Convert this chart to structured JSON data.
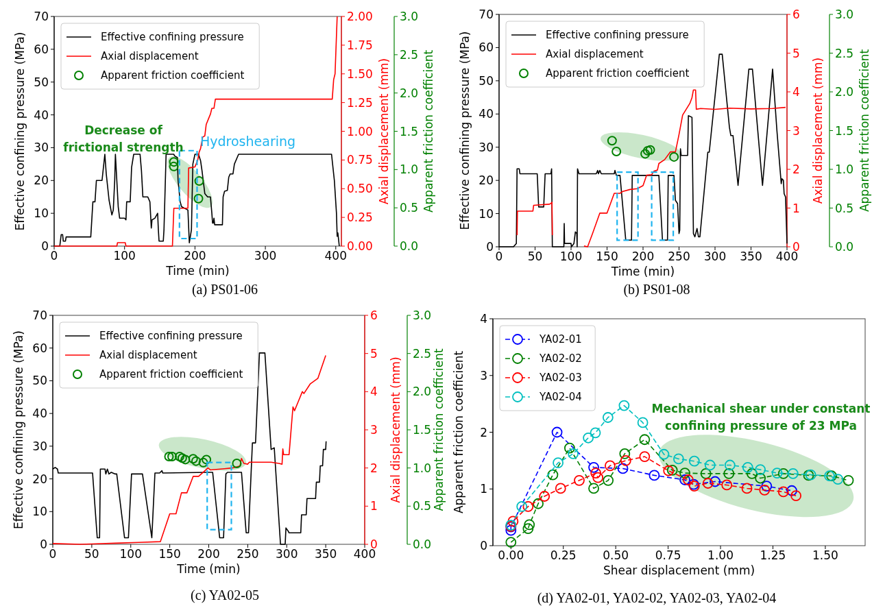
{
  "chart_data": [
    {
      "type": "line",
      "title": "(a) PS01-06",
      "xlabel": "Time (min)",
      "ylabel": "Effective confining pressure (MPa)",
      "y2label": "Axial displacement (mm)",
      "y3label": "Apparent friction coefficient",
      "xlim": [
        0,
        408
      ],
      "xticks": [
        0,
        100,
        200,
        300,
        400
      ],
      "ylim": [
        0,
        70
      ],
      "yticks": [
        0,
        10,
        20,
        30,
        40,
        50,
        60,
        70
      ],
      "y2lim": [
        0,
        2
      ],
      "y2ticks": [
        {
          "value": 0,
          "label": "0.00"
        },
        0.25,
        {
          "value": 0.5,
          "label": "0.50"
        },
        0.75,
        {
          "value": 1,
          "label": "1.00"
        },
        1.25,
        {
          "value": 1.5,
          "label": "1.50"
        },
        1.75,
        {
          "value": 2,
          "label": "2.00"
        }
      ],
      "y3lim": [
        0,
        3
      ],
      "y3ticks": [
        {
          "value": 0,
          "label": "0.0"
        },
        0.5,
        {
          "value": 1,
          "label": "1.0"
        },
        1.5,
        {
          "value": 2,
          "label": "2.0"
        },
        2.5,
        {
          "value": 3,
          "label": "3.0"
        }
      ],
      "legend": "top left",
      "annotations": [
        "Decrease of frictional strength",
        "Hydroshearing"
      ],
      "series": [
        {
          "name": "Effective confining pressure",
          "color": "#000000",
          "x": [
            0,
            8,
            10,
            12,
            13,
            16,
            17,
            52,
            55,
            58,
            60,
            66,
            68,
            70,
            72,
            74,
            78,
            82,
            84,
            86,
            87,
            89,
            91,
            93,
            100,
            102,
            103,
            108,
            110,
            113,
            122,
            124,
            126,
            133,
            136,
            138,
            139,
            143,
            147,
            148,
            149,
            155,
            156,
            159,
            170,
            171,
            175,
            176,
            179,
            181,
            190,
            192,
            195,
            197,
            200,
            205,
            208,
            210,
            214,
            218,
            222,
            224,
            225,
            226,
            227,
            228,
            239,
            240,
            242,
            246,
            248,
            250,
            254,
            256,
            260,
            262,
            394,
            398,
            401,
            402,
            403,
            404,
            405
          ],
          "values": [
            0,
            0,
            3.5,
            3.5,
            1.5,
            1.5,
            2.8,
            2.8,
            13.5,
            13.5,
            20,
            20,
            20,
            24,
            28,
            22,
            14,
            9.5,
            11,
            20,
            28,
            20,
            12,
            8.5,
            8.5,
            8,
            13.5,
            13.5,
            24,
            28,
            28,
            23,
            15,
            15,
            13.5,
            5.5,
            8,
            8.5,
            10,
            5,
            1.5,
            1.5,
            5,
            28,
            28,
            27.5,
            27,
            20,
            13.5,
            12,
            11,
            1,
            5,
            25,
            28,
            28,
            26,
            23,
            16,
            15,
            15,
            10,
            7,
            7,
            8.5,
            6.5,
            6.5,
            15,
            16.7,
            17,
            21,
            22,
            22,
            25,
            27,
            28,
            28,
            20,
            10,
            3,
            4,
            2,
            0
          ]
        },
        {
          "name": "Axial displacement",
          "color": "#ff0000",
          "axis": "y2",
          "x": [
            0,
            89,
            90,
            101,
            102,
            168,
            170,
            172,
            190,
            191,
            200,
            204,
            206,
            208,
            211,
            214,
            216,
            220,
            222,
            224,
            227,
            229,
            395,
            397,
            399,
            402
          ],
          "values": [
            0,
            0,
            0.03,
            0.03,
            0,
            0,
            0.33,
            0.33,
            0.33,
            0.68,
            0.69,
            0.75,
            0.82,
            0.85,
            0.95,
            0.96,
            1.06,
            1.12,
            1.15,
            1.2,
            1.2,
            1.28,
            1.28,
            1.45,
            1.5,
            2
          ]
        },
        {
          "name": "Apparent friction coefficient",
          "color": "#008000",
          "type": "scatter",
          "axis": "y3",
          "marker": "circle",
          "x": [
            170,
            170,
            206,
            205
          ],
          "values": [
            1.1,
            1.04,
            0.85,
            0.62
          ]
        }
      ]
    },
    {
      "type": "line",
      "title": "(b) PS01-08",
      "xlabel": "Time (min)",
      "ylabel": "Effective confining pressure (MPa)",
      "y2label": "Axial displacement (mm)",
      "y3label": "Apparent friction coefficient",
      "xlim": [
        0,
        400
      ],
      "xticks": [
        0,
        50,
        100,
        150,
        200,
        250,
        300,
        350,
        400
      ],
      "ylim": [
        0,
        70
      ],
      "yticks": [
        0,
        10,
        20,
        30,
        40,
        50,
        60,
        70
      ],
      "y2lim": [
        0,
        6
      ],
      "y2ticks": [
        0,
        1,
        2,
        3,
        4,
        5,
        6
      ],
      "y3lim": [
        0,
        3
      ],
      "y3ticks": [
        {
          "value": 0,
          "label": "0.0"
        },
        0.5,
        {
          "value": 1,
          "label": "1.0"
        },
        1.5,
        {
          "value": 2,
          "label": "2.0"
        },
        2.5,
        {
          "value": 3,
          "label": "3.0"
        }
      ],
      "legend": "top left",
      "series": [
        {
          "name": "Effective confining pressure",
          "color": "#000000",
          "x": [
            0,
            20,
            24,
            25,
            28,
            29,
            53,
            55,
            62,
            64,
            72,
            73,
            74,
            90,
            90.5,
            91,
            100,
            100.5,
            104,
            106,
            108,
            108.5,
            109,
            111,
            135,
            137,
            138,
            140,
            142,
            160,
            161,
            163,
            168,
            176,
            184,
            185,
            200,
            215,
            222,
            227,
            234,
            235,
            243,
            245,
            248,
            250,
            251,
            252,
            253,
            262,
            263,
            268,
            270,
            272,
            275,
            277,
            279,
            290,
            292,
            306,
            310,
            320,
            322,
            325,
            332,
            347,
            352,
            366,
            380,
            386,
            392,
            393,
            395,
            396,
            398,
            400
          ],
          "values": [
            0,
            0,
            1,
            23.5,
            23.5,
            22,
            22,
            12,
            12,
            22,
            22,
            23.5,
            0,
            0,
            7,
            1,
            1,
            0,
            1,
            4.5,
            4,
            0,
            23.5,
            22,
            22,
            23,
            22,
            23,
            22,
            22,
            23,
            21.5,
            21.5,
            2,
            2,
            21.5,
            21.5,
            21.5,
            21.5,
            2,
            2,
            21.5,
            21.5,
            14,
            13,
            4,
            5,
            29.5,
            27.5,
            27.5,
            39.5,
            39,
            4,
            3,
            5.5,
            3,
            3,
            28.5,
            28.5,
            58,
            58,
            36,
            33.5,
            33.5,
            18.5,
            53.5,
            53.5,
            18.5,
            53.5,
            35,
            19,
            20.5,
            20,
            16,
            15,
            1
          ]
        },
        {
          "name": "Axial displacement",
          "color": "#ff0000",
          "axis": "y2",
          "x": [
            25,
            25.5,
            47,
            48,
            70,
            72,
            73.5,
            74,
            80,
            118,
            123,
            130,
            140,
            150,
            160,
            168,
            172,
            182,
            192,
            200,
            205,
            212,
            215,
            220,
            222,
            230,
            238,
            245,
            250,
            255,
            260,
            265,
            268,
            270,
            273,
            274,
            280,
            300,
            320,
            350,
            380,
            398
          ],
          "values": [
            0.3,
            0.92,
            0.92,
            1.07,
            1.1,
            1.12,
            1.15,
            0.3,
            null,
            0.02,
            0,
            0.35,
            0.87,
            0.87,
            1.38,
            1.38,
            1.43,
            1.48,
            1.5,
            1.58,
            1.85,
            1.86,
            1.95,
            1.98,
            2.15,
            2.25,
            2.45,
            2.45,
            2.9,
            3.4,
            3.55,
            3.7,
            3.85,
            4.05,
            4.05,
            3.55,
            3.57,
            3.55,
            3.58,
            3.56,
            3.57,
            3.6
          ]
        },
        {
          "name": "Apparent friction coefficient",
          "color": "#008000",
          "type": "scatter",
          "axis": "y3",
          "marker": "circle",
          "x": [
            157,
            163,
            203,
            206.5,
            210,
            243
          ],
          "values": [
            1.37,
            1.23,
            1.2,
            1.24,
            1.25,
            1.16
          ]
        }
      ]
    },
    {
      "type": "line",
      "title": "(c) YA02-05",
      "xlabel": "Time (min)",
      "ylabel": "Effective confining pressure (MPa)",
      "y2label": "Axial displacement (mm)",
      "y3label": "Apparent friction coefficient",
      "xlim": [
        0,
        400
      ],
      "xticks": [
        0,
        50,
        100,
        150,
        200,
        250,
        300,
        350,
        400
      ],
      "ylim": [
        0,
        70
      ],
      "yticks": [
        0,
        10,
        20,
        30,
        40,
        50,
        60,
        70
      ],
      "y2lim": [
        0,
        6
      ],
      "y2ticks": [
        0,
        1,
        2,
        3,
        4,
        5,
        6
      ],
      "y3lim": [
        0,
        3
      ],
      "y3ticks": [
        {
          "value": 0,
          "label": "0.0"
        },
        0.5,
        {
          "value": 1,
          "label": "1.0"
        },
        1.5,
        {
          "value": 2,
          "label": "2.0"
        },
        2.5,
        {
          "value": 3,
          "label": "3.0"
        }
      ],
      "legend": "top left",
      "series": [
        {
          "name": "Effective confining pressure",
          "color": "#000000",
          "x": [
            0,
            3,
            6,
            7,
            50,
            51,
            57,
            60,
            61,
            67,
            68,
            70,
            72,
            75,
            80,
            82,
            92,
            97,
            101,
            115,
            127,
            131,
            137,
            140,
            141,
            200,
            205,
            214,
            219,
            222,
            224,
            242,
            248,
            251,
            256,
            260,
            265,
            272,
            280,
            284,
            292,
            298,
            299,
            302,
            303,
            318,
            319,
            325,
            326,
            337,
            338,
            342,
            343,
            346,
            347,
            350,
            350.5
          ],
          "values": [
            23,
            23.5,
            23,
            21.8,
            21.8,
            21.8,
            2,
            2,
            23,
            23,
            21.5,
            23,
            21.5,
            22,
            21.5,
            21.5,
            2,
            2,
            21.5,
            21.5,
            2,
            21.8,
            21.8,
            22.5,
            21.8,
            22,
            22,
            2,
            2,
            21.5,
            22,
            22,
            3.5,
            3.5,
            31,
            31,
            58.5,
            58.5,
            29,
            29.5,
            0,
            0,
            5,
            4,
            3.5,
            3.5,
            9,
            9,
            14,
            14,
            19,
            19,
            24,
            24,
            29,
            29,
            31.5
          ]
        },
        {
          "name": "Axial displacement",
          "color": "#ff0000",
          "axis": "y2",
          "x": [
            0,
            35,
            50,
            80,
            110,
            138,
            150,
            158,
            165,
            172,
            180,
            187,
            199,
            202,
            220,
            230,
            240,
            242,
            245,
            250,
            252,
            280,
            290,
            294,
            295,
            296,
            303,
            308,
            310,
            315,
            320,
            322,
            330,
            340,
            350
          ],
          "values": [
            0.02,
            0,
            0.01,
            0.03,
            0.05,
            0.07,
            0.8,
            0.8,
            1.35,
            1.35,
            1.78,
            1.78,
            2,
            1.95,
            1.98,
            2,
            2.05,
            2.25,
            2.12,
            2.1,
            2.15,
            2.15,
            2.12,
            2.1,
            2.5,
            2.35,
            2.35,
            3.6,
            3.5,
            3.75,
            4,
            3.95,
            4.2,
            4.35,
            4.95
          ]
        },
        {
          "name": "Apparent friction coefficient",
          "color": "#008000",
          "type": "scatter",
          "axis": "y3",
          "marker": "circle",
          "x": [
            149,
            153,
            162.6,
            166,
            170,
            180,
            183.7,
            193,
            197,
            236
          ],
          "values": [
            1.15,
            1.15,
            1.15,
            1.13,
            1.11,
            1.12,
            1.09,
            1.07,
            1.11,
            1.06
          ]
        }
      ]
    },
    {
      "type": "line",
      "title": "(d) YA02-01, YA02-02, YA02-03, YA02-04",
      "xlabel": "Shear displacement (mm)",
      "ylabel": "Apparent friction coefficient",
      "xlim": [
        -0.086,
        1.69
      ],
      "xticks": [
        {
          "value": 0,
          "label": "0.00"
        },
        0.25,
        {
          "value": 0.5,
          "label": "0.50"
        },
        0.75,
        {
          "value": 1,
          "label": "1.00"
        },
        1.25,
        {
          "value": 1.5,
          "label": "1.50"
        }
      ],
      "ylim": [
        0,
        4
      ],
      "yticks": [
        0,
        1,
        2,
        3,
        4
      ],
      "legend": "top left",
      "marker": "circle",
      "line_style": "dashed",
      "annotations": [
        "Mechanical shear under constant confining pressure of 23 MPa"
      ],
      "series": [
        {
          "name": "YA02-01",
          "color": "#0000ff",
          "x": [
            0,
            0,
            0.22,
            0.395,
            0.534,
            0.684,
            0.83,
            0.872,
            0.974,
            1.22,
            1.34
          ],
          "values": [
            0.27,
            0.33,
            2,
            1.38,
            1.36,
            1.24,
            1.16,
            1.08,
            1.13,
            1.05,
            0.97
          ]
        },
        {
          "name": "YA02-02",
          "color": "#008000",
          "x": [
            0,
            0.082,
            0.088,
            0.13,
            0.2,
            0.28,
            0.395,
            0.464,
            0.543,
            0.638,
            0.77,
            0.83,
            0.93,
            1.04,
            1.15,
            1.19,
            1.3,
            1.42,
            1.53,
            1.61
          ],
          "values": [
            0.06,
            0.3,
            0.37,
            0.74,
            1.25,
            1.72,
            1.01,
            1.15,
            1.62,
            1.87,
            1.33,
            1.28,
            1.27,
            1.27,
            1.27,
            1.19,
            1.27,
            1.24,
            1.23,
            1.15
          ]
        },
        {
          "name": "YA02-03",
          "color": "#ff0000",
          "x": [
            0,
            0.01,
            0.082,
            0.16,
            0.237,
            0.326,
            0.405,
            0.415,
            0.473,
            0.548,
            0.638,
            0.752,
            0.846,
            0.875,
            0.94,
            1.03,
            1.126,
            1.21,
            1.3,
            1.36
          ],
          "values": [
            0.34,
            0.43,
            0.69,
            0.87,
            1.01,
            1.15,
            1.28,
            1.2,
            1.41,
            1.5,
            1.57,
            1.32,
            1.16,
            1.05,
            1.1,
            1.07,
            1.01,
            0.98,
            0.95,
            0.88
          ]
        },
        {
          "name": "YA02-04",
          "color": "#00bfbf",
          "x": [
            0,
            0.052,
            0.225,
            0.297,
            0.369,
            0.403,
            0.463,
            0.54,
            0.629,
            0.73,
            0.8,
            0.875,
            0.95,
            1.045,
            1.13,
            1.19,
            1.27,
            1.346,
            1.43,
            1.52,
            1.56
          ],
          "values": [
            0.36,
            0.69,
            1.46,
            1.62,
            1.9,
            1.99,
            2.26,
            2.47,
            2.17,
            1.61,
            1.53,
            1.49,
            1.42,
            1.42,
            1.38,
            1.34,
            1.28,
            1.27,
            1.25,
            1.23,
            1.17
          ]
        }
      ]
    }
  ]
}
